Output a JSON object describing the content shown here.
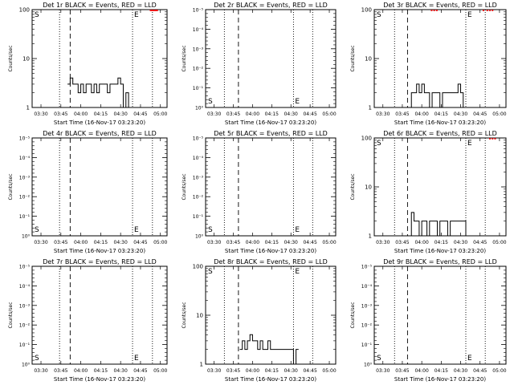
{
  "xticks": [
    "03:30",
    "03:45",
    "04:00",
    "04:15",
    "04:30",
    "04:45",
    "05:00"
  ],
  "xlabel": "Start Time (16-Nov-17 03:23:20)",
  "ylabel": "Counts/sec",
  "marker_s": "S",
  "marker_e": "E",
  "colors": {
    "events": "#000000",
    "lld": "#ff0000"
  },
  "chart_data": [
    {
      "type": "line",
      "title": "Det 1r BLACK = Events, RED = LLD",
      "yscale": "log",
      "ylim": [
        1,
        100
      ],
      "yticks": [
        "1",
        "10",
        "100"
      ],
      "x": [
        "03:30",
        "03:45",
        "03:50",
        "03:52",
        "03:54",
        "03:56",
        "03:58",
        "04:00",
        "04:02",
        "04:04",
        "04:06",
        "04:08",
        "04:10",
        "04:12",
        "04:14",
        "04:16",
        "04:18",
        "04:20",
        "04:22",
        "04:24",
        "04:26",
        "04:28",
        "04:30",
        "04:32",
        "04:34",
        "04:36"
      ],
      "series": [
        {
          "name": "Events",
          "values": [
            null,
            null,
            3,
            4,
            3,
            3,
            2,
            3,
            2,
            3,
            3,
            2,
            3,
            2,
            3,
            3,
            3,
            2,
            3,
            3,
            3,
            4,
            3,
            1,
            2,
            1
          ]
        }
      ],
      "vlines": [
        {
          "x": "03:44",
          "style": "dotted"
        },
        {
          "x": "03:52",
          "style": "dashed"
        },
        {
          "x": "04:39",
          "style": "dotted"
        },
        {
          "x": "04:54",
          "style": "dotted"
        }
      ],
      "lld_marks": [
        "04:52",
        "04:53",
        "04:54",
        "04:55",
        "04:56",
        "04:57"
      ]
    },
    {
      "type": "line",
      "title": "Det 2r BLACK = Events, RED = LLD",
      "yscale": "linear",
      "ylim": [
        0,
        1
      ],
      "yticks": [
        "10⁰",
        "10⁻¹",
        "10⁻²",
        "10⁻³",
        "10⁻⁴",
        "10⁻⁵"
      ],
      "x": [],
      "series": [],
      "vlines": [
        {
          "x": "03:38",
          "style": "dotted"
        },
        {
          "x": "03:49",
          "style": "dashed"
        },
        {
          "x": "04:32",
          "style": "dotted"
        },
        {
          "x": "04:47",
          "style": "dotted"
        }
      ],
      "lld_marks": []
    },
    {
      "type": "line",
      "title": "Det 3r BLACK = Events, RED = LLD",
      "yscale": "log",
      "ylim": [
        1,
        100
      ],
      "yticks": [
        "1",
        "10",
        "100"
      ],
      "x": [
        "03:50",
        "03:52",
        "03:54",
        "03:56",
        "03:58",
        "04:00",
        "04:02",
        "04:04",
        "04:06",
        "04:08",
        "04:10",
        "04:12",
        "04:14",
        "04:16",
        "04:18",
        "04:20",
        "04:22",
        "04:24",
        "04:26",
        "04:28",
        "04:30",
        "04:32",
        "04:34"
      ],
      "series": [
        {
          "name": "Events",
          "values": [
            1,
            2,
            2,
            3,
            2,
            3,
            2,
            2,
            1,
            2,
            2,
            2,
            1,
            2,
            2,
            2,
            2,
            2,
            2,
            3,
            2,
            1,
            1
          ]
        }
      ],
      "vlines": [
        {
          "x": "03:39",
          "style": "dotted"
        },
        {
          "x": "03:49",
          "style": "dashed"
        },
        {
          "x": "04:34",
          "style": "dotted"
        },
        {
          "x": "04:49",
          "style": "dotted"
        }
      ],
      "lld_marks": [
        "04:07",
        "04:09",
        "04:11",
        "04:47",
        "04:50",
        "04:52",
        "04:54"
      ]
    },
    {
      "type": "line",
      "title": "Det 4r BLACK = Events, RED = LLD",
      "yscale": "linear",
      "ylim": [
        0,
        1
      ],
      "yticks": [
        "10⁰",
        "10⁻¹",
        "10⁻²",
        "10⁻³",
        "10⁻⁴",
        "10⁻⁵"
      ],
      "x": [],
      "series": [],
      "vlines": [
        {
          "x": "03:44",
          "style": "dotted"
        },
        {
          "x": "03:52",
          "style": "dashed"
        },
        {
          "x": "04:39",
          "style": "dotted"
        },
        {
          "x": "04:54",
          "style": "dotted"
        }
      ],
      "lld_marks": []
    },
    {
      "type": "line",
      "title": "Det 5r BLACK = Events, RED = LLD",
      "yscale": "linear",
      "ylim": [
        0,
        1
      ],
      "yticks": [
        "10⁰",
        "10⁻¹",
        "10⁻²",
        "10⁻³",
        "10⁻⁴",
        "10⁻⁵"
      ],
      "x": [],
      "series": [],
      "vlines": [
        {
          "x": "03:38",
          "style": "dotted"
        },
        {
          "x": "03:49",
          "style": "dashed"
        },
        {
          "x": "04:32",
          "style": "dotted"
        },
        {
          "x": "04:47",
          "style": "dotted"
        }
      ],
      "lld_marks": []
    },
    {
      "type": "line",
      "title": "Det 6r BLACK = Events, RED = LLD",
      "yscale": "log",
      "ylim": [
        1,
        100
      ],
      "yticks": [
        "1",
        "10",
        "100"
      ],
      "x": [
        "03:50",
        "03:52",
        "03:54",
        "03:56",
        "03:58",
        "04:00",
        "04:02",
        "04:04",
        "04:06",
        "04:08",
        "04:10",
        "04:12",
        "04:14",
        "04:16",
        "04:18",
        "04:20",
        "04:22",
        "04:24",
        "04:26",
        "04:28",
        "04:30",
        "04:32",
        "04:34"
      ],
      "series": [
        {
          "name": "Events",
          "values": [
            1,
            3,
            2,
            2,
            1,
            2,
            2,
            1,
            2,
            2,
            2,
            1,
            2,
            2,
            2,
            1,
            2,
            2,
            2,
            2,
            2,
            2,
            1
          ]
        }
      ],
      "vlines": [
        {
          "x": "03:39",
          "style": "dotted"
        },
        {
          "x": "03:49",
          "style": "dashed"
        },
        {
          "x": "04:34",
          "style": "dotted"
        },
        {
          "x": "04:49",
          "style": "dotted"
        }
      ],
      "lld_marks": [
        "04:52",
        "04:54",
        "04:56"
      ]
    },
    {
      "type": "line",
      "title": "Det 7r BLACK = Events, RED = LLD",
      "yscale": "linear",
      "ylim": [
        0,
        1
      ],
      "yticks": [
        "10⁰",
        "10⁻¹",
        "10⁻²",
        "10⁻³",
        "10⁻⁴",
        "10⁻⁵"
      ],
      "x": [],
      "series": [],
      "vlines": [
        {
          "x": "03:44",
          "style": "dotted"
        },
        {
          "x": "03:52",
          "style": "dashed"
        },
        {
          "x": "04:39",
          "style": "dotted"
        },
        {
          "x": "04:54",
          "style": "dotted"
        }
      ],
      "lld_marks": []
    },
    {
      "type": "line",
      "title": "Det 8r BLACK = Events, RED = LLD",
      "yscale": "log",
      "ylim": [
        1,
        100
      ],
      "yticks": [
        "1",
        "10",
        "100"
      ],
      "x": [
        "03:50",
        "03:52",
        "03:54",
        "03:56",
        "03:58",
        "04:00",
        "04:02",
        "04:04",
        "04:06",
        "04:08",
        "04:10",
        "04:12",
        "04:14",
        "04:16",
        "04:18",
        "04:20",
        "04:22",
        "04:24",
        "04:26",
        "04:28",
        "04:30",
        "04:32",
        "04:34"
      ],
      "series": [
        {
          "name": "Events",
          "values": [
            2,
            3,
            2,
            3,
            4,
            3,
            3,
            2,
            3,
            2,
            2,
            3,
            2,
            2,
            2,
            2,
            2,
            2,
            2,
            2,
            2,
            1,
            2
          ]
        }
      ],
      "vlines": [
        {
          "x": "03:38",
          "style": "dotted"
        },
        {
          "x": "03:49",
          "style": "dashed"
        },
        {
          "x": "04:32",
          "style": "dotted"
        },
        {
          "x": "04:47",
          "style": "dotted"
        }
      ],
      "lld_marks": []
    },
    {
      "type": "line",
      "title": "Det 9r BLACK = Events, RED = LLD",
      "yscale": "linear",
      "ylim": [
        0,
        1
      ],
      "yticks": [
        "10⁰",
        "10⁻¹",
        "10⁻²",
        "10⁻³",
        "10⁻⁴",
        "10⁻⁵"
      ],
      "x": [],
      "series": [],
      "vlines": [
        {
          "x": "03:39",
          "style": "dotted"
        },
        {
          "x": "03:49",
          "style": "dashed"
        },
        {
          "x": "04:34",
          "style": "dotted"
        },
        {
          "x": "04:49",
          "style": "dotted"
        }
      ],
      "lld_marks": []
    }
  ]
}
